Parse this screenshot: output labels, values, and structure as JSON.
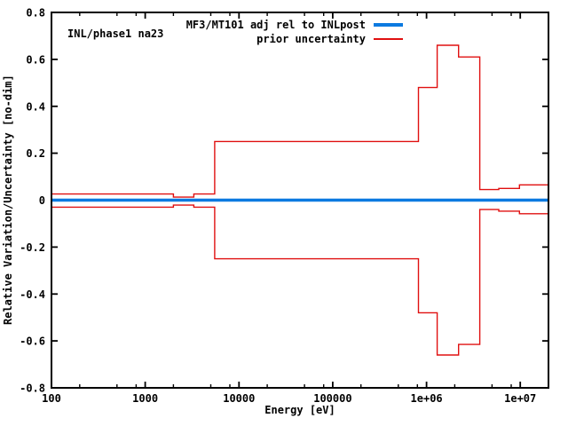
{
  "page": {
    "background": "#ffffff"
  },
  "chart_data": {
    "type": "line",
    "inplot_label": "INL/phase1 na23",
    "xlabel": "Energy [eV]",
    "ylabel": "Relative Variation/Uncertainty [no-dim]",
    "x_scale": "log",
    "xlim": [
      100,
      20000000
    ],
    "ylim": [
      -0.8,
      0.8
    ],
    "grid": false,
    "axis_color": "#000000",
    "x_major_ticks": [
      100,
      1000,
      10000,
      100000,
      1000000,
      10000000
    ],
    "x_major_tick_labels": [
      "100",
      "1000",
      "10000",
      "100000",
      "1e+06",
      "1e+07"
    ],
    "x_minor_tick_multiples": [
      2,
      5,
      8
    ],
    "y_ticks": [
      -0.8,
      -0.6,
      -0.4,
      -0.2,
      0,
      0.2,
      0.4,
      0.6,
      0.8
    ],
    "y_tick_labels": [
      "-0.8",
      "-0.6",
      "-0.4",
      "-0.2",
      "0",
      "0.2",
      "0.4",
      "0.6",
      "0.8"
    ],
    "legend": {
      "position": "top-right-inside",
      "entries": [
        {
          "label": "MF3/MT101 adj rel to INLpost",
          "color": "#0c7ae0",
          "sample_thickness": 4
        },
        {
          "label": "prior uncertainty",
          "color": "#e01010",
          "sample_thickness": 2
        }
      ]
    },
    "series": [
      {
        "name": "MF3/MT101 adj rel to INLpost",
        "color": "#0c7ae0",
        "stroke_width": 3.5,
        "style": "flat",
        "x": [
          100,
          20000000
        ],
        "y": [
          0,
          0
        ]
      },
      {
        "name": "prior uncertainty (upper)",
        "color": "#e01010",
        "stroke_width": 1.4,
        "style": "step",
        "step_edges_eV": [
          100,
          2000,
          3300,
          5500,
          820000,
          1300000,
          2200000,
          3700000,
          5900000,
          9800000,
          20000000
        ],
        "step_values": [
          0.026,
          0.013,
          0.026,
          0.25,
          0.48,
          0.66,
          0.61,
          0.045,
          0.05,
          0.065
        ]
      },
      {
        "name": "prior uncertainty (lower)",
        "color": "#e01010",
        "stroke_width": 1.4,
        "style": "step",
        "step_edges_eV": [
          100,
          2000,
          3300,
          5500,
          820000,
          1300000,
          2200000,
          3700000,
          5900000,
          9800000,
          20000000
        ],
        "step_values": [
          -0.03,
          -0.021,
          -0.03,
          -0.25,
          -0.48,
          -0.66,
          -0.615,
          -0.04,
          -0.047,
          -0.058
        ]
      }
    ]
  }
}
